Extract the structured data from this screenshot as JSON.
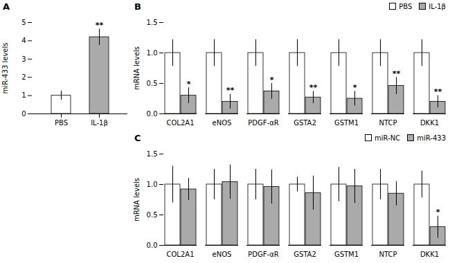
{
  "chart_data": [
    {
      "type": "bar",
      "title": "A",
      "categories": [
        "PBS",
        "IL-1β"
      ],
      "values": [
        1.0,
        4.2
      ],
      "errors": [
        0.25,
        0.45
      ],
      "colors": [
        "white",
        "#aaaaaa"
      ],
      "ylabel": "miR-433 levels",
      "ylim": [
        0,
        5
      ],
      "yticks": [
        0,
        1,
        2,
        3,
        4,
        5
      ],
      "annotations": [
        {
          "category": "IL-1β",
          "text": "**"
        }
      ]
    },
    {
      "type": "bar",
      "title": "B",
      "categories": [
        "COL2A1",
        "eNOS",
        "PDGF-αR",
        "GSTA2",
        "GSTM1",
        "NTCP",
        "DKK1"
      ],
      "series": [
        {
          "name": "PBS",
          "color": "white",
          "values": [
            1.0,
            1.0,
            1.0,
            1.0,
            1.0,
            1.0,
            1.0
          ],
          "errors": [
            0.22,
            0.22,
            0.22,
            0.22,
            0.22,
            0.22,
            0.22
          ]
        },
        {
          "name": "IL-1β",
          "color": "#aaaaaa",
          "values": [
            0.3,
            0.2,
            0.37,
            0.27,
            0.25,
            0.46,
            0.2
          ],
          "errors": [
            0.13,
            0.12,
            0.13,
            0.1,
            0.12,
            0.14,
            0.1
          ]
        }
      ],
      "ylabel": "mRNA levels",
      "ylim": [
        0,
        1.5
      ],
      "yticks": [
        {
          "value": 0,
          "label": "0.0"
        },
        0.5,
        {
          "value": 1,
          "label": "1.0"
        },
        1.5
      ],
      "legend": "upper right",
      "annotations": [
        {
          "category": "COL2A1",
          "series": "IL-1β",
          "text": "*"
        },
        {
          "category": "eNOS",
          "series": "IL-1β",
          "text": "**"
        },
        {
          "category": "PDGF-αR",
          "series": "IL-1β",
          "text": "*"
        },
        {
          "category": "GSTA2",
          "series": "IL-1β",
          "text": "**"
        },
        {
          "category": "GSTM1",
          "series": "IL-1β",
          "text": "*"
        },
        {
          "category": "NTCP",
          "series": "IL-1β",
          "text": "**"
        },
        {
          "category": "DKK1",
          "series": "IL-1β",
          "text": "**"
        }
      ]
    },
    {
      "type": "bar",
      "title": "C",
      "categories": [
        "COL2A1",
        "eNOS",
        "PDGF-αR",
        "GSTA2",
        "GSTM1",
        "NTCP",
        "DKK1"
      ],
      "series": [
        {
          "name": "miR-NC",
          "color": "white",
          "values": [
            1.0,
            1.0,
            1.0,
            1.0,
            1.0,
            1.0,
            1.0
          ],
          "errors": [
            0.3,
            0.25,
            0.25,
            0.12,
            0.28,
            0.25,
            0.22
          ]
        },
        {
          "name": "miR-433",
          "color": "#aaaaaa",
          "values": [
            0.92,
            1.04,
            0.96,
            0.86,
            0.97,
            0.85,
            0.3
          ],
          "errors": [
            0.18,
            0.28,
            0.28,
            0.28,
            0.28,
            0.2,
            0.18
          ]
        }
      ],
      "ylabel": "mRNA levels",
      "ylim": [
        0,
        1.5
      ],
      "yticks": [
        {
          "value": 0,
          "label": "0.0"
        },
        0.5,
        {
          "value": 1,
          "label": "1.0"
        },
        1.5
      ],
      "legend": "upper right",
      "annotations": [
        {
          "category": "DKK1",
          "series": "miR-433",
          "text": "*"
        }
      ]
    }
  ]
}
